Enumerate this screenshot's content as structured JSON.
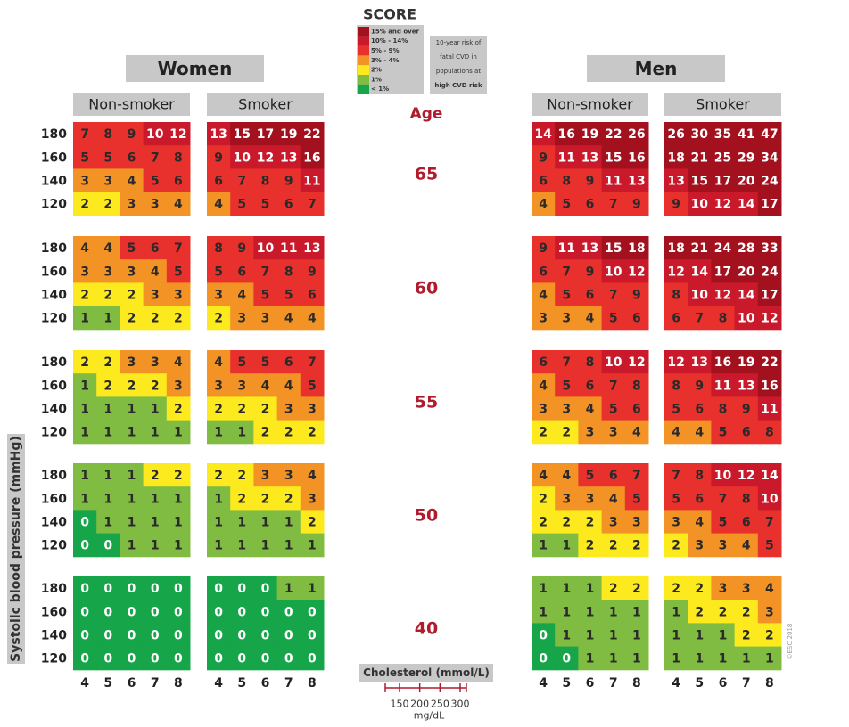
{
  "title": "SCORE",
  "legend": {
    "items": [
      {
        "label": "15% and over",
        "from": 15,
        "color": "#a3111f",
        "text_color": "#ffffff"
      },
      {
        "label": "10% - 14%",
        "from": 10,
        "color": "#c9192b",
        "text_color": "#ffffff"
      },
      {
        "label": "5% - 9%",
        "from": 5,
        "color": "#e8302d",
        "text_color": "#2a2a2a"
      },
      {
        "label": "3% - 4%",
        "from": 3,
        "color": "#f39325",
        "text_color": "#2a2a2a"
      },
      {
        "label": "2%",
        "from": 2,
        "color": "#fdea1e",
        "text_color": "#2a2a2a"
      },
      {
        "label": "1%",
        "from": 1,
        "color": "#80bc42",
        "text_color": "#2a2a2a"
      },
      {
        "label": "< 1%",
        "from": 0,
        "color": "#17a54a",
        "text_color": "#ffffff"
      }
    ],
    "note": [
      "10-year risk of",
      "fatal CVD in",
      "populations at",
      "high CVD risk"
    ]
  },
  "age_label": "Age",
  "ages": [
    65,
    60,
    55,
    50,
    40
  ],
  "sbp_label": "Systolic blood pressure (mmHg)",
  "sbp": [
    180,
    160,
    140,
    120
  ],
  "cholesterol_label": "Cholesterol (mmol/L)",
  "cholesterol": [
    4,
    5,
    6,
    7,
    8
  ],
  "mgdl": {
    "ticks": [
      150,
      200,
      250,
      300
    ],
    "unit": "mg/dL"
  },
  "copyright": "©ESC 2018",
  "panels": [
    {
      "name": "Women",
      "groups": [
        {
          "name": "Non-smoker",
          "blocks": [
            [
              [
                7,
                8,
                9,
                10,
                12
              ],
              [
                5,
                5,
                6,
                7,
                8
              ],
              [
                3,
                3,
                4,
                5,
                6
              ],
              [
                2,
                2,
                3,
                3,
                4
              ]
            ],
            [
              [
                4,
                4,
                5,
                6,
                7
              ],
              [
                3,
                3,
                3,
                4,
                5
              ],
              [
                2,
                2,
                2,
                3,
                3
              ],
              [
                1,
                1,
                2,
                2,
                2
              ]
            ],
            [
              [
                2,
                2,
                3,
                3,
                4
              ],
              [
                1,
                2,
                2,
                2,
                3
              ],
              [
                1,
                1,
                1,
                1,
                2
              ],
              [
                1,
                1,
                1,
                1,
                1
              ]
            ],
            [
              [
                1,
                1,
                1,
                2,
                2
              ],
              [
                1,
                1,
                1,
                1,
                1
              ],
              [
                0,
                1,
                1,
                1,
                1
              ],
              [
                0,
                0,
                1,
                1,
                1
              ]
            ],
            [
              [
                0,
                0,
                0,
                0,
                0
              ],
              [
                0,
                0,
                0,
                0,
                0
              ],
              [
                0,
                0,
                0,
                0,
                0
              ],
              [
                0,
                0,
                0,
                0,
                0
              ]
            ]
          ]
        },
        {
          "name": "Smoker",
          "blocks": [
            [
              [
                13,
                15,
                17,
                19,
                22
              ],
              [
                9,
                10,
                12,
                13,
                16
              ],
              [
                6,
                7,
                8,
                9,
                11
              ],
              [
                4,
                5,
                5,
                6,
                7
              ]
            ],
            [
              [
                8,
                9,
                10,
                11,
                13
              ],
              [
                5,
                6,
                7,
                8,
                9
              ],
              [
                3,
                4,
                5,
                5,
                6
              ],
              [
                2,
                3,
                3,
                4,
                4
              ]
            ],
            [
              [
                4,
                5,
                5,
                6,
                7
              ],
              [
                3,
                3,
                4,
                4,
                5
              ],
              [
                2,
                2,
                2,
                3,
                3
              ],
              [
                1,
                1,
                2,
                2,
                2
              ]
            ],
            [
              [
                2,
                2,
                3,
                3,
                4
              ],
              [
                1,
                2,
                2,
                2,
                3
              ],
              [
                1,
                1,
                1,
                1,
                2
              ],
              [
                1,
                1,
                1,
                1,
                1
              ]
            ],
            [
              [
                0,
                0,
                0,
                1,
                1
              ],
              [
                0,
                0,
                0,
                0,
                0
              ],
              [
                0,
                0,
                0,
                0,
                0
              ],
              [
                0,
                0,
                0,
                0,
                0
              ]
            ]
          ]
        }
      ]
    },
    {
      "name": "Men",
      "groups": [
        {
          "name": "Non-smoker",
          "blocks": [
            [
              [
                14,
                16,
                19,
                22,
                26
              ],
              [
                9,
                11,
                13,
                15,
                16
              ],
              [
                6,
                8,
                9,
                11,
                13
              ],
              [
                4,
                5,
                6,
                7,
                9
              ]
            ],
            [
              [
                9,
                11,
                13,
                15,
                18
              ],
              [
                6,
                7,
                9,
                10,
                12
              ],
              [
                4,
                5,
                6,
                7,
                9
              ],
              [
                3,
                3,
                4,
                5,
                6
              ]
            ],
            [
              [
                6,
                7,
                8,
                10,
                12
              ],
              [
                4,
                5,
                6,
                7,
                8
              ],
              [
                3,
                3,
                4,
                5,
                6
              ],
              [
                2,
                2,
                3,
                3,
                4
              ]
            ],
            [
              [
                4,
                4,
                5,
                6,
                7
              ],
              [
                2,
                3,
                3,
                4,
                5
              ],
              [
                2,
                2,
                2,
                3,
                3
              ],
              [
                1,
                1,
                2,
                2,
                2
              ]
            ],
            [
              [
                1,
                1,
                1,
                2,
                2
              ],
              [
                1,
                1,
                1,
                1,
                1
              ],
              [
                0,
                1,
                1,
                1,
                1
              ],
              [
                0,
                0,
                1,
                1,
                1
              ]
            ]
          ]
        },
        {
          "name": "Smoker",
          "blocks": [
            [
              [
                26,
                30,
                35,
                41,
                47
              ],
              [
                18,
                21,
                25,
                29,
                34
              ],
              [
                13,
                15,
                17,
                20,
                24
              ],
              [
                9,
                10,
                12,
                14,
                17
              ]
            ],
            [
              [
                18,
                21,
                24,
                28,
                33
              ],
              [
                12,
                14,
                17,
                20,
                24
              ],
              [
                8,
                10,
                12,
                14,
                17
              ],
              [
                6,
                7,
                8,
                10,
                12
              ]
            ],
            [
              [
                12,
                13,
                16,
                19,
                22
              ],
              [
                8,
                9,
                11,
                13,
                16
              ],
              [
                5,
                6,
                8,
                9,
                11
              ],
              [
                4,
                4,
                5,
                6,
                8
              ]
            ],
            [
              [
                7,
                8,
                10,
                12,
                14
              ],
              [
                5,
                6,
                7,
                8,
                10
              ],
              [
                3,
                4,
                5,
                6,
                7
              ],
              [
                2,
                3,
                3,
                4,
                5
              ]
            ],
            [
              [
                2,
                2,
                3,
                3,
                4
              ],
              [
                1,
                2,
                2,
                2,
                3
              ],
              [
                1,
                1,
                1,
                2,
                2
              ],
              [
                1,
                1,
                1,
                1,
                1
              ]
            ]
          ]
        }
      ]
    }
  ]
}
